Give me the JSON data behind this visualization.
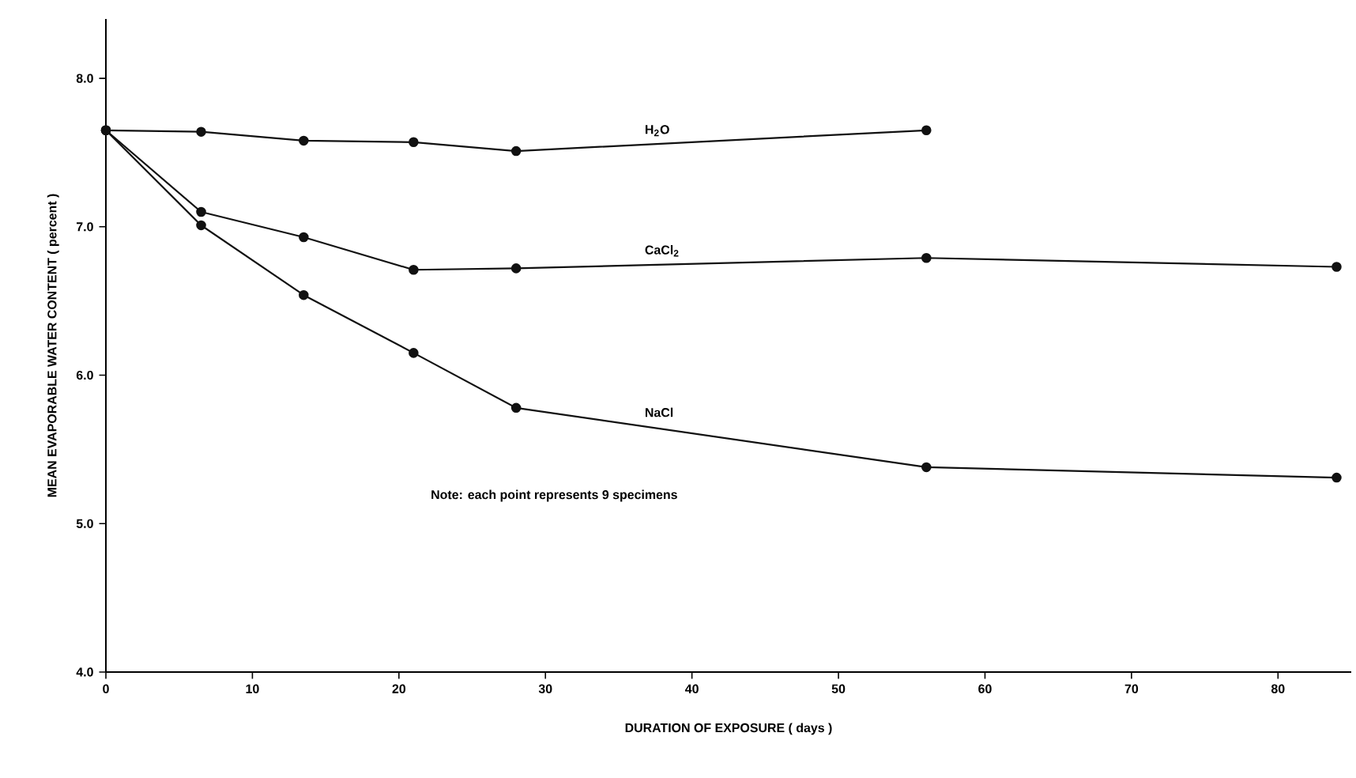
{
  "chart_data": {
    "type": "line",
    "xlabel": "DURATION  OF  EXPOSURE  ( days )",
    "ylabel": "MEAN  EVAPORABLE  WATER  CONTENT  ( percent )",
    "series": [
      {
        "name": "H$_{2}$O",
        "color": "#111111",
        "x": [
          0,
          6.5,
          13.5,
          21,
          28,
          56
        ],
        "values": [
          7.65,
          7.64,
          7.58,
          7.57,
          7.51,
          7.65
        ]
      },
      {
        "name": "CaCl$_{2}$",
        "color": "#111111",
        "x": [
          0,
          6.5,
          13.5,
          21,
          28,
          56,
          84
        ],
        "values": [
          7.65,
          7.1,
          6.93,
          6.71,
          6.72,
          6.79,
          6.73
        ]
      },
      {
        "name": "NaCl",
        "color": "#111111",
        "x": [
          0,
          6.5,
          13.5,
          21,
          28,
          56,
          84
        ],
        "values": [
          7.65,
          7.01,
          6.54,
          6.15,
          5.78,
          5.38,
          5.31
        ]
      }
    ],
    "xlim": [
      0,
      85
    ],
    "ylim": [
      4,
      8.4
    ],
    "xticks": [
      0,
      10,
      20,
      30,
      40,
      50,
      60,
      70,
      80
    ],
    "yticks": [
      {
        "value": 4,
        "label": "4.0"
      },
      {
        "value": 5,
        "label": "5.0"
      },
      {
        "value": 6,
        "label": "6.0"
      },
      {
        "value": 7,
        "label": "7.0"
      },
      {
        "value": 8,
        "label": "8.0"
      }
    ],
    "marker": "circle",
    "line_style": "solid",
    "grid": false,
    "annotations": [
      "Note: each point represents 9 specimens"
    ]
  }
}
